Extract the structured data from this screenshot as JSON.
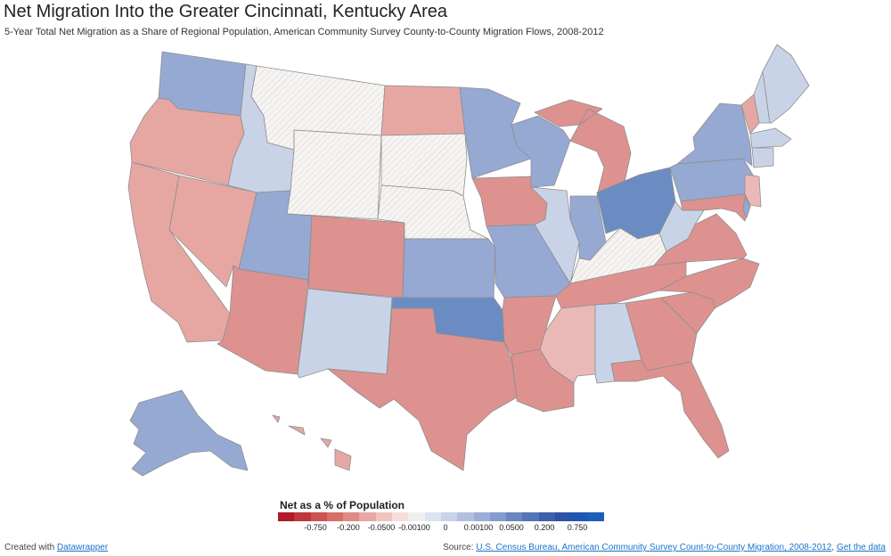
{
  "header": {
    "title": "Net Migration Into the Greater Cincinnati, Kentucky Area",
    "subtitle": "5-Year Total Net Migration as a Share of Regional Population, American Community Survey County-to-County Migration Flows, 2008-2012"
  },
  "colors": {
    "strong_blue": "#6b8cc2",
    "mid_blue": "#96a9d3",
    "light_blue": "#b4c2e0",
    "pale_blue": "#c9d3e8",
    "pale_red": "#eab9b6",
    "light_red": "#e6a7a3",
    "mid_red": "#dd9290",
    "no_data": "#f5f3f1",
    "border": "#999999"
  },
  "map_data": {
    "WA": "mid_blue",
    "OR": "light_red",
    "CA": "light_red",
    "NV": "light_red",
    "ID": "pale_blue",
    "MT": "no_data",
    "WY": "no_data",
    "UT": "mid_blue",
    "AZ": "mid_red",
    "CO": "mid_red",
    "NM": "pale_blue",
    "ND": "light_red",
    "SD": "no_data",
    "NE": "no_data",
    "KS": "mid_blue",
    "OK": "strong_blue",
    "TX": "mid_red",
    "MN": "mid_blue",
    "IA": "mid_red",
    "MO": "mid_blue",
    "AR": "mid_red",
    "LA": "mid_red",
    "WI": "mid_blue",
    "IL": "pale_blue",
    "MI": "mid_red",
    "IN": "mid_blue",
    "OH": "strong_blue",
    "KY": "no_data",
    "TN": "mid_red",
    "MS": "pale_red",
    "AL": "pale_blue",
    "GA": "mid_red",
    "FL": "mid_red",
    "SC": "mid_red",
    "NC": "mid_red",
    "VA": "mid_red",
    "WV": "pale_blue",
    "PA": "mid_blue",
    "NY": "mid_blue",
    "VT": "light_red",
    "NH": "pale_blue",
    "ME": "pale_blue",
    "MA": "pale_blue",
    "CT": "pale_blue",
    "NJ": "pale_red",
    "MD": "mid_red",
    "DE": "mid_blue",
    "AK": "mid_blue",
    "HI": "light_red"
  },
  "legend": {
    "title": "Net as a % of Population",
    "swatches": [
      "#b2182b",
      "#c0363d",
      "#cc5350",
      "#d76f69",
      "#df8a85",
      "#e8a7a2",
      "#efc4bf",
      "#f5dedb",
      "#efefef",
      "#dde3ef",
      "#c8d2e8",
      "#b2c0e0",
      "#9caed7",
      "#849bcc",
      "#6b87c0",
      "#5574b6",
      "#3d60ab",
      "#2b54a6",
      "#1f57b2",
      "#1c5fb8"
    ],
    "ticks": [
      "-0.750",
      "-0.200",
      "-0.0500",
      "-0.00100",
      "0",
      "0.00100",
      "0.0500",
      "0.200",
      "0.750"
    ]
  },
  "footer": {
    "created_with": "Created with",
    "created_link": "Datawrapper",
    "source_label": "Source:",
    "source_link": "U.S. Census Bureau, American Community Survey Count-to-County Migration, 2008-2012",
    "separator": ",",
    "get_data": "Get the data"
  }
}
